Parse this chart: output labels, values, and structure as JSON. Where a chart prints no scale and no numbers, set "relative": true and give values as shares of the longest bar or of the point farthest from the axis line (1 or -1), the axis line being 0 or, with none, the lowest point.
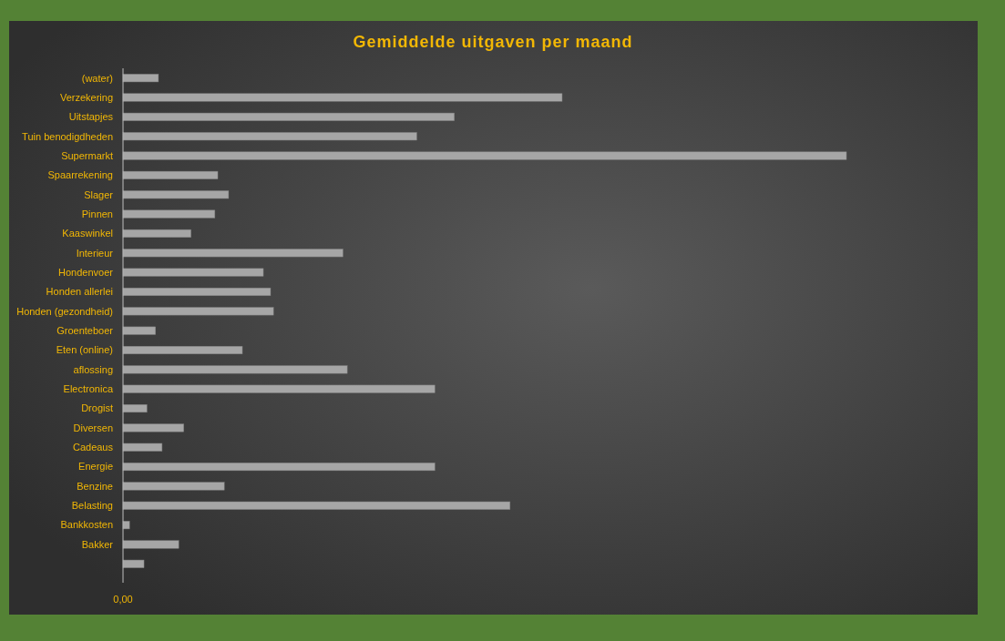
{
  "chart_data": {
    "type": "bar",
    "orientation": "horizontal",
    "relative": true,
    "title": "Gemiddelde uitgaven per maand",
    "categories": [
      "(water)",
      "Verzekering",
      "Uitstapjes",
      "Tuin benodigdheden",
      "Supermarkt",
      "Spaarrekening",
      "Slager",
      "Pinnen",
      "Kaaswinkel",
      "Interieur",
      "Hondenvoer",
      "Honden allerlei",
      "Honden (gezondheid)",
      "Groenteboer",
      "Eten (online)",
      "aflossing",
      "Electronica",
      "Drogist",
      "Diversen",
      "Cadeaus",
      "Energie",
      "Benzine",
      "Belasting",
      "Bankkosten",
      "Bakker",
      null
    ],
    "values": [
      0.049,
      0.607,
      0.458,
      0.406,
      1,
      0.131,
      0.146,
      0.127,
      0.094,
      0.304,
      0.194,
      0.204,
      0.208,
      0.045,
      0.165,
      0.31,
      0.431,
      0.033,
      0.084,
      0.054,
      0.431,
      0.14,
      0.535,
      0.009,
      0.077,
      0.029
    ],
    "color": "#a6a6a6",
    "annotations": [
      "0,00"
    ]
  }
}
